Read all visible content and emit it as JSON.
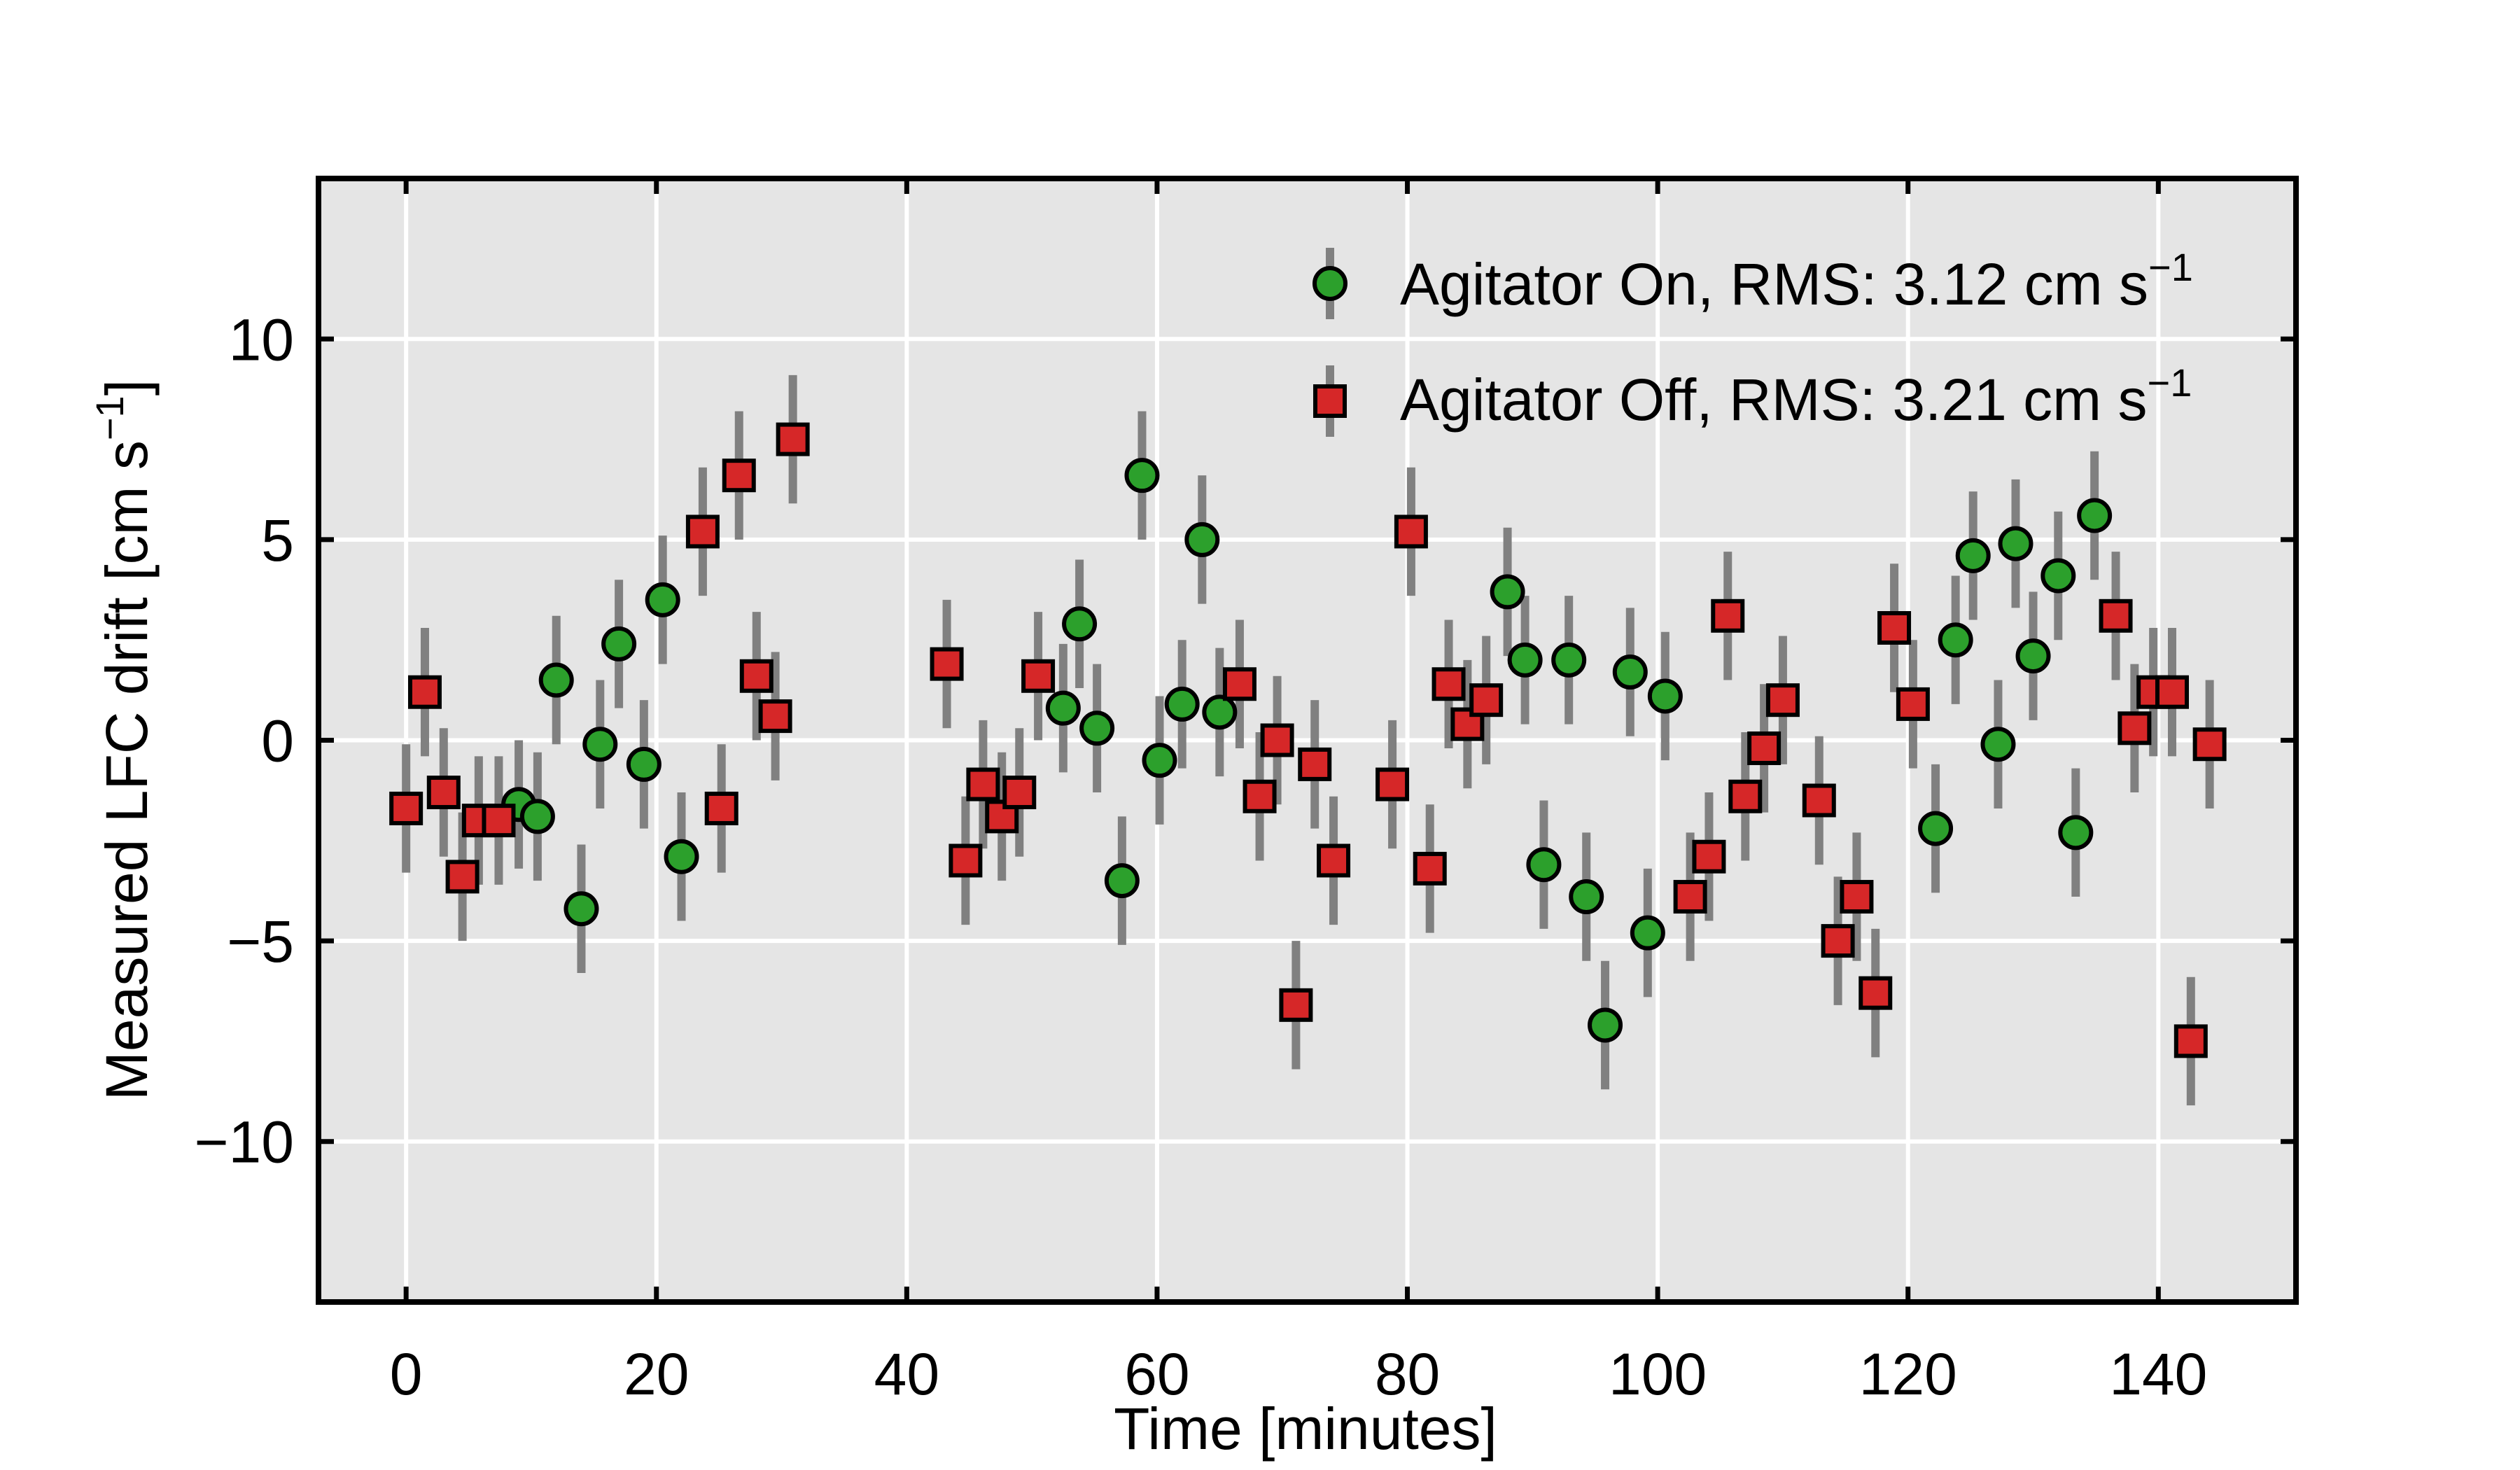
{
  "chart_data": {
    "type": "scatter",
    "xlabel": "Time [minutes]",
    "ylabel": "Measured LFC drift [cm s",
    "ylabel_exponent": "−1",
    "ylabel_suffix": "]",
    "xlim": [
      -7,
      151
    ],
    "ylim": [
      -14,
      14
    ],
    "x_ticks": [
      0,
      20,
      40,
      60,
      80,
      100,
      120,
      140
    ],
    "y_ticks": [
      -10,
      -5,
      0,
      5,
      10
    ],
    "x_tick_labels": [
      "0",
      "20",
      "40",
      "60",
      "80",
      "100",
      "120",
      "140"
    ],
    "y_tick_labels": [
      "−10",
      "−5",
      "0",
      "5",
      "10"
    ],
    "grid": true,
    "legend_position": "top-right",
    "colors": {
      "background": "#e5e5e5",
      "grid": "#ffffff",
      "error_bar": "#808080",
      "agitator_on": "#2ca02c",
      "agitator_off": "#d62728",
      "marker_edge": "#000000"
    },
    "series": [
      {
        "name": "Agitator On, RMS: 3.12 cm s",
        "name_exponent": "−1",
        "marker": "circle",
        "error": 1.6,
        "points": [
          [
            9.0,
            -1.6
          ],
          [
            10.5,
            -1.9
          ],
          [
            12.0,
            1.5
          ],
          [
            14.0,
            -4.2
          ],
          [
            15.5,
            -0.1
          ],
          [
            17.0,
            2.4
          ],
          [
            19.0,
            -0.6
          ],
          [
            20.5,
            3.5
          ],
          [
            22.0,
            -2.9
          ],
          [
            52.5,
            0.8
          ],
          [
            53.8,
            2.9
          ],
          [
            55.2,
            0.3
          ],
          [
            57.2,
            -3.5
          ],
          [
            58.8,
            6.6
          ],
          [
            60.2,
            -0.5
          ],
          [
            62.0,
            0.9
          ],
          [
            63.6,
            5.0
          ],
          [
            65.0,
            0.7
          ],
          [
            88.0,
            3.7
          ],
          [
            89.4,
            2.0
          ],
          [
            90.9,
            -3.1
          ],
          [
            92.9,
            2.0
          ],
          [
            94.3,
            -3.9
          ],
          [
            95.8,
            -7.1
          ],
          [
            97.8,
            1.7
          ],
          [
            99.2,
            -4.8
          ],
          [
            100.6,
            1.1
          ],
          [
            122.2,
            -2.2
          ],
          [
            123.8,
            2.5
          ],
          [
            125.2,
            4.6
          ],
          [
            127.2,
            -0.1
          ],
          [
            128.6,
            4.9
          ],
          [
            130.0,
            2.1
          ],
          [
            132.0,
            4.1
          ],
          [
            133.4,
            -2.3
          ],
          [
            134.9,
            5.6
          ]
        ]
      },
      {
        "name": "Agitator Off, RMS: 3.21 cm s",
        "name_exponent": "−1",
        "marker": "square",
        "error": 1.6,
        "points": [
          [
            0.0,
            -1.7
          ],
          [
            1.5,
            1.2
          ],
          [
            3.0,
            -1.3
          ],
          [
            4.5,
            -3.4
          ],
          [
            5.8,
            -2.0
          ],
          [
            7.4,
            -2.0
          ],
          [
            23.7,
            5.2
          ],
          [
            25.2,
            -1.7
          ],
          [
            26.6,
            6.6
          ],
          [
            28.0,
            1.6
          ],
          [
            29.5,
            0.6
          ],
          [
            30.9,
            7.5
          ],
          [
            43.2,
            1.9
          ],
          [
            44.7,
            -3.0
          ],
          [
            46.1,
            -1.1
          ],
          [
            47.6,
            -1.9
          ],
          [
            49.0,
            -1.3
          ],
          [
            50.5,
            1.6
          ],
          [
            66.6,
            1.4
          ],
          [
            68.2,
            -1.4
          ],
          [
            69.6,
            0.0
          ],
          [
            71.1,
            -6.6
          ],
          [
            72.6,
            -0.6
          ],
          [
            74.1,
            -3.0
          ],
          [
            78.8,
            -1.1
          ],
          [
            80.3,
            5.2
          ],
          [
            81.8,
            -3.2
          ],
          [
            83.3,
            1.4
          ],
          [
            84.8,
            0.4
          ],
          [
            86.3,
            1.0
          ],
          [
            102.6,
            -3.9
          ],
          [
            104.1,
            -2.9
          ],
          [
            105.6,
            3.1
          ],
          [
            107.0,
            -1.4
          ],
          [
            108.5,
            -0.2
          ],
          [
            110.0,
            1.0
          ],
          [
            112.9,
            -1.5
          ],
          [
            114.4,
            -5.0
          ],
          [
            115.9,
            -3.9
          ],
          [
            117.4,
            -6.3
          ],
          [
            118.9,
            2.8
          ],
          [
            120.4,
            0.9
          ],
          [
            136.6,
            3.1
          ],
          [
            138.1,
            0.3
          ],
          [
            139.6,
            1.2
          ],
          [
            141.1,
            1.2
          ],
          [
            142.6,
            -7.5
          ],
          [
            144.1,
            -0.1
          ]
        ]
      }
    ]
  }
}
